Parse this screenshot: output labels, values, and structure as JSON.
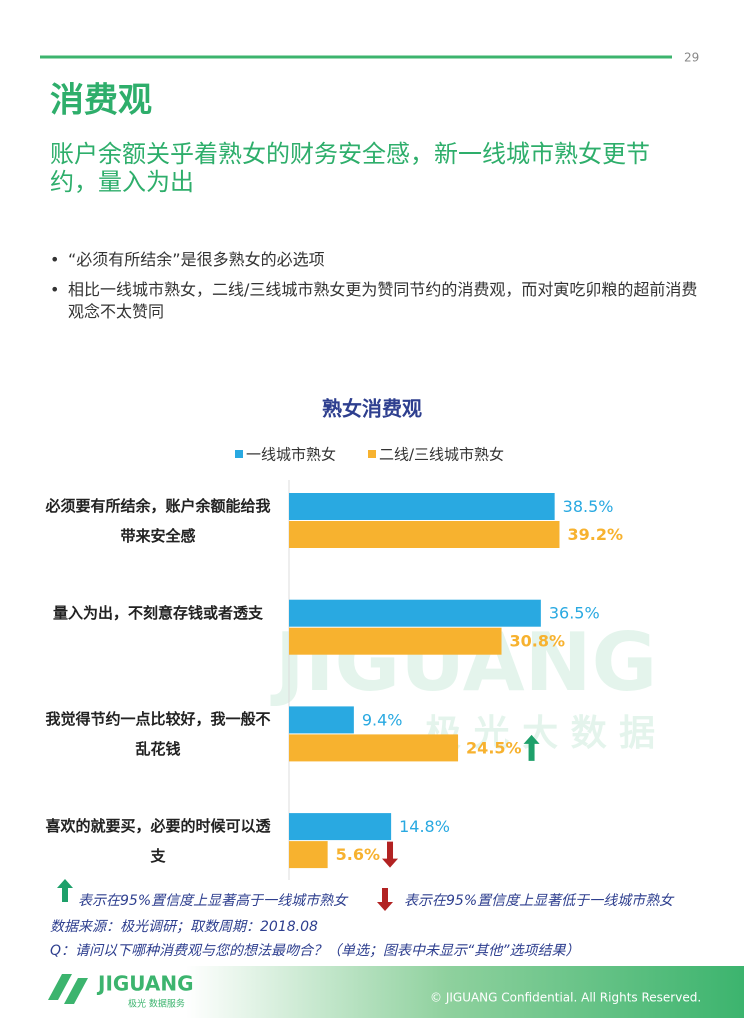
{
  "page_number": "29",
  "header": {
    "title": "消费观",
    "subtitle": "账户余额关乎着熟女的财务安全感，新一线城市熟女更节约，量入为出"
  },
  "bullets": [
    "“必须有所结余”是很多熟女的必选项",
    "相比一线城市熟女，二线/三线城市熟女更为赞同节约的消费观，而对寅吃卯粮的超前消费观念不太赞同"
  ],
  "watermark": {
    "name": "JIGUANG",
    "tagline": "极 光 大 数 据"
  },
  "chart_data": {
    "type": "hbar",
    "title": "熟女消费观",
    "categories": [
      "必须要有所结余，账户余额能给我带来安全感",
      "量入为出，不刻意存钱或者透支",
      "我觉得节约一点比较好，我一般不乱花钱",
      "喜欢的就要买，必要的时候可以透支"
    ],
    "series": [
      {
        "name": "一线城市熟女",
        "color": "#29a9e1",
        "values": [
          38.5,
          36.5,
          9.4,
          14.8
        ],
        "value_labels": [
          "38.5%",
          "36.5%",
          "9.4%",
          "14.8%"
        ]
      },
      {
        "name": "二线/三线城市熟女",
        "color": "#f7b22f",
        "values": [
          39.2,
          30.8,
          24.5,
          5.6
        ],
        "value_labels": [
          "39.2%",
          "30.8%",
          "24.5%",
          "5.6%"
        ],
        "significance": [
          null,
          null,
          "up",
          "down"
        ]
      }
    ]
  },
  "notes": {
    "up": "表示在95%置信度上显著高于一线城市熟女",
    "down": "表示在95%置信度上显著低于一线城市熟女",
    "source": "数据来源：极光调研；取数周期：2018.08",
    "question": "Q：请问以下哪种消费观与您的想法最吻合？（单选；图表中未显示“其他”选项结果）"
  },
  "footer": {
    "logo_name": "JIGUANG",
    "logo_tagline": "极光 数据服务",
    "copyright": "© JIGUANG Confidential. All Rights Reserved."
  }
}
